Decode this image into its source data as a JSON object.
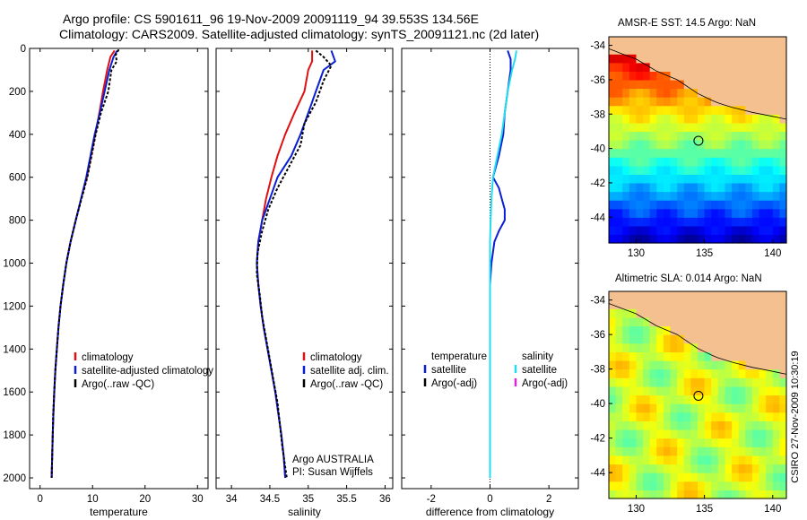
{
  "header": {
    "title_line1": "Argo profile: CS 5901611_96 19-Nov-2009 20091119_94 39.553S 134.56E",
    "title_line2": "Climatology: CARS2009. Satellite-adjusted climatology: synTS_20091121.nc (2d later)"
  },
  "colors": {
    "climatology": "#dd1111",
    "satellite": "#0a1ed4",
    "argo": "#000000",
    "satellite_diff": "#22ddee",
    "argo_adj_sal": "#dd22dd",
    "land": "#f5c090"
  },
  "chart_data": [
    {
      "type": "line",
      "id": "temperature",
      "xlabel": "temperature",
      "xlim": [
        -2,
        32
      ],
      "xticks": [
        0,
        10,
        20,
        30
      ],
      "ylim": [
        0,
        2050
      ],
      "yticks": [
        0,
        200,
        400,
        600,
        800,
        1000,
        1200,
        1400,
        1600,
        1800,
        2000
      ],
      "y_reversed": true,
      "legend": [
        "climatology",
        "satellite-adjusted climatology",
        "Argo(..raw -QC)"
      ],
      "legend_position": "lower-center",
      "series": [
        {
          "name": "climatology",
          "color_key": "climatology",
          "points": [
            [
              14.2,
              10
            ],
            [
              13.4,
              40
            ],
            [
              12.8,
              100
            ],
            [
              12.0,
              200
            ],
            [
              11.3,
              300
            ],
            [
              10.5,
              400
            ],
            [
              9.7,
              500
            ],
            [
              8.9,
              600
            ],
            [
              7.8,
              700
            ],
            [
              6.8,
              800
            ],
            [
              5.8,
              900
            ],
            [
              5.0,
              1000
            ],
            [
              4.4,
              1100
            ],
            [
              3.9,
              1200
            ],
            [
              3.5,
              1300
            ],
            [
              3.2,
              1400
            ],
            [
              2.9,
              1500
            ],
            [
              2.7,
              1600
            ],
            [
              2.55,
              1700
            ],
            [
              2.4,
              1800
            ],
            [
              2.3,
              1900
            ],
            [
              2.2,
              2000
            ]
          ]
        },
        {
          "name": "satellite-adjusted climatology",
          "color_key": "satellite",
          "points": [
            [
              14.7,
              10
            ],
            [
              14.0,
              40
            ],
            [
              13.2,
              100
            ],
            [
              12.3,
              200
            ],
            [
              11.4,
              300
            ],
            [
              10.4,
              400
            ],
            [
              9.6,
              500
            ],
            [
              8.8,
              600
            ],
            [
              7.8,
              700
            ],
            [
              6.8,
              800
            ],
            [
              5.8,
              900
            ],
            [
              5.0,
              1000
            ],
            [
              4.4,
              1100
            ],
            [
              3.9,
              1200
            ],
            [
              3.5,
              1300
            ],
            [
              3.2,
              1400
            ],
            [
              2.9,
              1500
            ],
            [
              2.7,
              1600
            ],
            [
              2.55,
              1700
            ],
            [
              2.4,
              1800
            ],
            [
              2.3,
              1900
            ],
            [
              2.2,
              2000
            ]
          ]
        },
        {
          "name": "Argo(..raw -QC)",
          "color_key": "argo",
          "points": [
            [
              15.0,
              5
            ],
            [
              14.4,
              30
            ],
            [
              14.6,
              60
            ],
            [
              13.6,
              100
            ],
            [
              13.0,
              200
            ],
            [
              11.6,
              300
            ],
            [
              10.6,
              400
            ],
            [
              9.8,
              500
            ],
            [
              9.0,
              600
            ],
            [
              7.9,
              700
            ],
            [
              6.8,
              800
            ],
            [
              5.8,
              900
            ],
            [
              5.0,
              1000
            ],
            [
              4.4,
              1100
            ],
            [
              3.9,
              1200
            ],
            [
              3.5,
              1300
            ],
            [
              3.2,
              1400
            ],
            [
              2.9,
              1500
            ],
            [
              2.7,
              1600
            ],
            [
              2.5,
              1700
            ],
            [
              2.4,
              1800
            ],
            [
              2.3,
              1900
            ],
            [
              2.2,
              2000
            ]
          ]
        }
      ]
    },
    {
      "type": "line",
      "id": "salinity",
      "xlabel": "salinity",
      "xlim": [
        33.8,
        36.1
      ],
      "xticks": [
        34,
        34.5,
        35,
        35.5,
        36
      ],
      "ylim": [
        0,
        2050
      ],
      "y_reversed": true,
      "legend": [
        "climatology",
        "satellite adj. clim.",
        "Argo(..raw -QC)"
      ],
      "legend_position": "lower-right",
      "annotation_line1": "Argo AUSTRALIA",
      "annotation_line2": "PI: Susan Wijffels",
      "series": [
        {
          "name": "climatology",
          "color_key": "climatology",
          "points": [
            [
              35.05,
              10
            ],
            [
              35.05,
              60
            ],
            [
              35.0,
              100
            ],
            [
              34.95,
              200
            ],
            [
              34.82,
              300
            ],
            [
              34.7,
              400
            ],
            [
              34.6,
              500
            ],
            [
              34.52,
              600
            ],
            [
              34.45,
              700
            ],
            [
              34.4,
              800
            ],
            [
              34.35,
              900
            ],
            [
              34.33,
              1000
            ],
            [
              34.35,
              1100
            ],
            [
              34.38,
              1200
            ],
            [
              34.42,
              1300
            ],
            [
              34.47,
              1400
            ],
            [
              34.52,
              1500
            ],
            [
              34.57,
              1600
            ],
            [
              34.61,
              1700
            ],
            [
              34.65,
              1800
            ],
            [
              34.68,
              1900
            ],
            [
              34.7,
              2000
            ]
          ]
        },
        {
          "name": "satellite adj. clim.",
          "color_key": "satellite",
          "points": [
            [
              35.3,
              10
            ],
            [
              35.35,
              60
            ],
            [
              35.2,
              100
            ],
            [
              35.1,
              200
            ],
            [
              35.0,
              300
            ],
            [
              34.9,
              400
            ],
            [
              34.78,
              500
            ],
            [
              34.6,
              600
            ],
            [
              34.5,
              700
            ],
            [
              34.4,
              800
            ],
            [
              34.35,
              900
            ],
            [
              34.33,
              1000
            ],
            [
              34.35,
              1100
            ],
            [
              34.38,
              1200
            ],
            [
              34.42,
              1300
            ],
            [
              34.47,
              1400
            ],
            [
              34.52,
              1500
            ],
            [
              34.57,
              1600
            ],
            [
              34.61,
              1700
            ],
            [
              34.65,
              1800
            ],
            [
              34.68,
              1900
            ],
            [
              34.7,
              2000
            ]
          ]
        },
        {
          "name": "Argo(..raw -QC)",
          "color_key": "argo",
          "points": [
            [
              35.1,
              10
            ],
            [
              35.2,
              40
            ],
            [
              35.3,
              80
            ],
            [
              35.2,
              150
            ],
            [
              35.1,
              250
            ],
            [
              34.95,
              350
            ],
            [
              34.9,
              450
            ],
            [
              34.75,
              550
            ],
            [
              34.6,
              650
            ],
            [
              34.48,
              750
            ],
            [
              34.4,
              850
            ],
            [
              34.34,
              950
            ],
            [
              34.33,
              1050
            ],
            [
              34.37,
              1150
            ],
            [
              34.4,
              1250
            ],
            [
              34.45,
              1350
            ],
            [
              34.5,
              1450
            ],
            [
              34.55,
              1550
            ],
            [
              34.6,
              1650
            ],
            [
              34.63,
              1750
            ],
            [
              34.66,
              1850
            ],
            [
              34.7,
              1950
            ],
            [
              34.72,
              2000
            ]
          ]
        }
      ]
    },
    {
      "type": "line",
      "id": "difference",
      "xlabel": "difference from climatology",
      "xlim": [
        -3,
        3
      ],
      "xticks": [
        -2,
        0,
        2
      ],
      "ylim": [
        0,
        2050
      ],
      "y_reversed": true,
      "zero_line": true,
      "legend_temperature_heading": "temperature",
      "legend_salinity_heading": "salinity",
      "legend_temperature": [
        "satellite",
        "Argo(-adj)"
      ],
      "legend_salinity": [
        "satellite",
        "Argo(-adj)"
      ],
      "series": [
        {
          "name": "satellite",
          "group": "temperature",
          "color_key": "satellite",
          "points": [
            [
              0.6,
              10
            ],
            [
              0.7,
              50
            ],
            [
              0.7,
              100
            ],
            [
              0.6,
              200
            ],
            [
              0.5,
              300
            ],
            [
              0.45,
              400
            ],
            [
              0.3,
              500
            ],
            [
              0.1,
              600
            ],
            [
              0.3,
              650
            ],
            [
              0.4,
              700
            ],
            [
              0.5,
              750
            ],
            [
              0.5,
              800
            ],
            [
              0.3,
              850
            ],
            [
              0.15,
              900
            ],
            [
              0.05,
              1000
            ],
            [
              0.0,
              1100
            ],
            [
              0.0,
              2000
            ]
          ]
        },
        {
          "name": "satellite",
          "group": "salinity",
          "color_key": "satellite_diff",
          "points": [
            [
              0.9,
              10
            ],
            [
              0.85,
              50
            ],
            [
              0.75,
              100
            ],
            [
              0.6,
              200
            ],
            [
              0.5,
              300
            ],
            [
              0.4,
              400
            ],
            [
              0.25,
              500
            ],
            [
              0.1,
              600
            ],
            [
              0.05,
              700
            ],
            [
              0.02,
              800
            ],
            [
              0.0,
              900
            ],
            [
              0.0,
              2000
            ]
          ]
        }
      ]
    },
    {
      "type": "heatmap",
      "id": "sst_map",
      "title": "AMSR-E SST: 14.5  Argo: NaN",
      "xlim": [
        128,
        141
      ],
      "xticks": [
        130,
        135,
        140
      ],
      "ylim": [
        -45.5,
        -33.5
      ],
      "yticks": [
        -44,
        -42,
        -40,
        -38,
        -36,
        -34
      ],
      "marker": [
        134.56,
        -39.55
      ],
      "colormap": "jet"
    },
    {
      "type": "heatmap",
      "id": "sla_map",
      "title": "Altimetric SLA: 0.014  Argo: NaN",
      "xlim": [
        128,
        141
      ],
      "xticks": [
        130,
        135,
        140
      ],
      "ylim": [
        -45.5,
        -33.5
      ],
      "yticks": [
        -44,
        -42,
        -40,
        -38,
        -36,
        -34
      ],
      "marker": [
        134.56,
        -39.55
      ],
      "colormap": "jet"
    }
  ],
  "footer": {
    "credit": "CSIRO 27-Nov-2009 10:30:19"
  }
}
